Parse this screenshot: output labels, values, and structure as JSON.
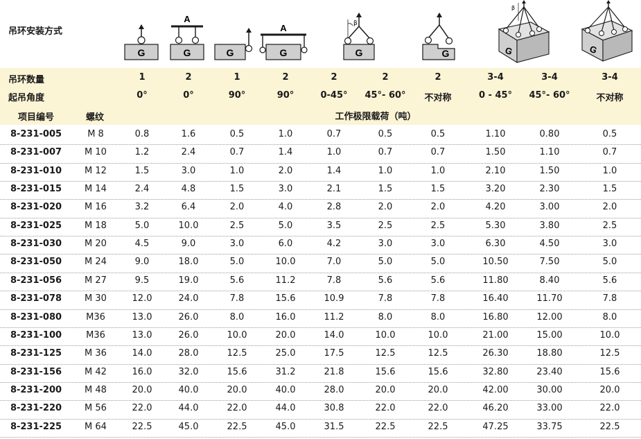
{
  "install_method_label": "吊环安装方式",
  "diagram_letters": {
    "g": "G",
    "a": "A",
    "beta": "β"
  },
  "row_labels": {
    "count": "吊环数量",
    "angle": "起吊角度",
    "item_no": "项目编号",
    "thread": "螺纹",
    "load_title": "工作极限载荷（吨）"
  },
  "configs": [
    {
      "count": "1",
      "angle": "0°"
    },
    {
      "count": "2",
      "angle": "0°"
    },
    {
      "count": "1",
      "angle": "90°"
    },
    {
      "count": "2",
      "angle": "90°"
    },
    {
      "count": "2",
      "angle": "0-45°"
    },
    {
      "count": "2",
      "angle": "45°- 60°"
    },
    {
      "count": "2",
      "angle": "不对称"
    },
    {
      "count": "3-4",
      "angle": "0 - 45°"
    },
    {
      "count": "3-4",
      "angle": "45°- 60°"
    },
    {
      "count": "3-4",
      "angle": "不对称"
    }
  ],
  "rows": [
    {
      "item": "8-231-005",
      "thread": "M  8",
      "loads": [
        "0.8",
        "1.6",
        "0.5",
        "1.0",
        "0.7",
        "0.5",
        "0.5",
        "1.10",
        "0.80",
        "0.5"
      ]
    },
    {
      "item": "8-231-007",
      "thread": "M 10",
      "loads": [
        "1.2",
        "2.4",
        "0.7",
        "1.4",
        "1.0",
        "0.7",
        "0.7",
        "1.50",
        "1.10",
        "0.7"
      ]
    },
    {
      "item": "8-231-010",
      "thread": "M 12",
      "loads": [
        "1.5",
        "3.0",
        "1.0",
        "2.0",
        "1.4",
        "1.0",
        "1.0",
        "2.10",
        "1.50",
        "1.0"
      ]
    },
    {
      "item": "8-231-015",
      "thread": "M 14",
      "loads": [
        "2.4",
        "4.8",
        "1.5",
        "3.0",
        "2.1",
        "1.5",
        "1.5",
        "3.20",
        "2.30",
        "1.5"
      ]
    },
    {
      "item": "8-231-020",
      "thread": "M 16",
      "loads": [
        "3.2",
        "6.4",
        "2.0",
        "4.0",
        "2.8",
        "2.0",
        "2.0",
        "4.20",
        "3.00",
        "2.0"
      ]
    },
    {
      "item": "8-231-025",
      "thread": "M 18",
      "loads": [
        "5.0",
        "10.0",
        "2.5",
        "5.0",
        "3.5",
        "2.5",
        "2.5",
        "5.30",
        "3.80",
        "2.5"
      ]
    },
    {
      "item": "8-231-030",
      "thread": "M 20",
      "loads": [
        "4.5",
        "9.0",
        "3.0",
        "6.0",
        "4.2",
        "3.0",
        "3.0",
        "6.30",
        "4.50",
        "3.0"
      ]
    },
    {
      "item": "8-231-050",
      "thread": "M 24",
      "loads": [
        "9.0",
        "18.0",
        "5.0",
        "10.0",
        "7.0",
        "5.0",
        "5.0",
        "10.50",
        "7.50",
        "5.0"
      ]
    },
    {
      "item": "8-231-056",
      "thread": "M 27",
      "loads": [
        "9.5",
        "19.0",
        "5.6",
        "11.2",
        "7.8",
        "5.6",
        "5.6",
        "11.80",
        "8.40",
        "5.6"
      ]
    },
    {
      "item": "8-231-078",
      "thread": "M 30",
      "loads": [
        "12.0",
        "24.0",
        "7.8",
        "15.6",
        "10.9",
        "7.8",
        "7.8",
        "16.40",
        "11.70",
        "7.8"
      ]
    },
    {
      "item": "8-231-080",
      "thread": "M36",
      "loads": [
        "13.0",
        "26.0",
        "8.0",
        "16.0",
        "11.2",
        "8.0",
        "8.0",
        "16.80",
        "12.00",
        "8.0"
      ]
    },
    {
      "item": "8-231-100",
      "thread": "M36",
      "loads": [
        "13.0",
        "26.0",
        "10.0",
        "20.0",
        "14.0",
        "10.0",
        "10.0",
        "21.00",
        "15.00",
        "10.0"
      ]
    },
    {
      "item": "8-231-125",
      "thread": "M 36",
      "loads": [
        "14.0",
        "28.0",
        "12.5",
        "25.0",
        "17.5",
        "12.5",
        "12.5",
        "26.30",
        "18.80",
        "12.5"
      ]
    },
    {
      "item": "8-231-156",
      "thread": "M 42",
      "loads": [
        "16.0",
        "32.0",
        "15.6",
        "31.2",
        "21.8",
        "15.6",
        "15.6",
        "32.80",
        "23.40",
        "15.6"
      ]
    },
    {
      "item": "8-231-200",
      "thread": "M 48",
      "loads": [
        "20.0",
        "40.0",
        "20.0",
        "40.0",
        "28.0",
        "20.0",
        "20.0",
        "42.00",
        "30.00",
        "20.0"
      ]
    },
    {
      "item": "8-231-220",
      "thread": "M 56",
      "loads": [
        "22.0",
        "44.0",
        "22.0",
        "44.0",
        "30.8",
        "22.0",
        "22.0",
        "46.20",
        "33.00",
        "22.0"
      ]
    },
    {
      "item": "8-231-225",
      "thread": "M 64",
      "loads": [
        "22.5",
        "45.0",
        "22.5",
        "45.0",
        "31.5",
        "22.5",
        "22.5",
        "47.25",
        "33.75",
        "22.5"
      ]
    }
  ],
  "colors": {
    "header_band": "#fbf4d5",
    "block_fill": "#cfcfcf",
    "block_stroke": "#1a1a1a",
    "divider": "#9a9a9a"
  }
}
